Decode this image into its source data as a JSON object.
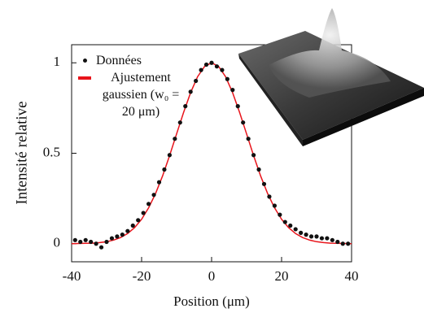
{
  "chart_data": {
    "type": "scatter",
    "xlabel": "Position (μm)",
    "ylabel": "Intensité relative",
    "xlim": [
      -40,
      40
    ],
    "xticks": [
      -40,
      -20,
      0,
      20,
      40
    ],
    "ylim": [
      -0.1,
      1.1
    ],
    "yticks": [
      0,
      0.5,
      1
    ],
    "legend": "top-left",
    "series": [
      {
        "name": "Données",
        "color": "#111111",
        "mode": "markers",
        "x": [
          -39,
          -37.5,
          -36,
          -34.5,
          -33,
          -31.5,
          -30,
          -28.5,
          -27,
          -25.5,
          -24,
          -22.5,
          -21,
          -19.5,
          -18,
          -16.5,
          -15,
          -13.5,
          -12,
          -10.5,
          -9,
          -7.5,
          -6,
          -4.5,
          -3,
          -1.5,
          0,
          1.5,
          3,
          4.5,
          6,
          7.5,
          9,
          10.5,
          12,
          13.5,
          15,
          16.5,
          18,
          19.5,
          21,
          22.5,
          24,
          25.5,
          27,
          28.5,
          30,
          31.5,
          33,
          34.5,
          36,
          37.5,
          39
        ],
        "values": [
          0.02,
          0.01,
          0.02,
          0.01,
          0.0,
          -0.02,
          0.01,
          0.03,
          0.04,
          0.05,
          0.07,
          0.1,
          0.13,
          0.17,
          0.22,
          0.27,
          0.34,
          0.41,
          0.49,
          0.58,
          0.67,
          0.76,
          0.84,
          0.9,
          0.96,
          0.99,
          1.0,
          0.98,
          0.96,
          0.91,
          0.85,
          0.76,
          0.67,
          0.58,
          0.49,
          0.41,
          0.33,
          0.26,
          0.21,
          0.16,
          0.12,
          0.1,
          0.08,
          0.06,
          0.05,
          0.04,
          0.04,
          0.03,
          0.03,
          0.02,
          0.01,
          0.0,
          0.0
        ]
      },
      {
        "name": "Ajustement gaussien (w₀ = 20 μm)",
        "color": "#e8141b",
        "mode": "line",
        "x": [
          -40,
          -38,
          -36,
          -34,
          -32,
          -30,
          -28,
          -26,
          -24,
          -22,
          -20,
          -18,
          -16,
          -14,
          -12,
          -10,
          -8,
          -6,
          -4,
          -2,
          0,
          2,
          4,
          6,
          8,
          10,
          12,
          14,
          16,
          18,
          20,
          22,
          24,
          26,
          28,
          30,
          32,
          34,
          36,
          38,
          40
        ],
        "values": [
          0.0,
          0.001,
          0.002,
          0.003,
          0.006,
          0.011,
          0.02,
          0.034,
          0.056,
          0.089,
          0.135,
          0.198,
          0.278,
          0.375,
          0.487,
          0.607,
          0.726,
          0.835,
          0.923,
          0.98,
          1.0,
          0.98,
          0.923,
          0.835,
          0.726,
          0.607,
          0.487,
          0.375,
          0.278,
          0.198,
          0.135,
          0.089,
          0.056,
          0.034,
          0.02,
          0.011,
          0.006,
          0.003,
          0.002,
          0.001,
          0.0
        ]
      }
    ]
  }
}
